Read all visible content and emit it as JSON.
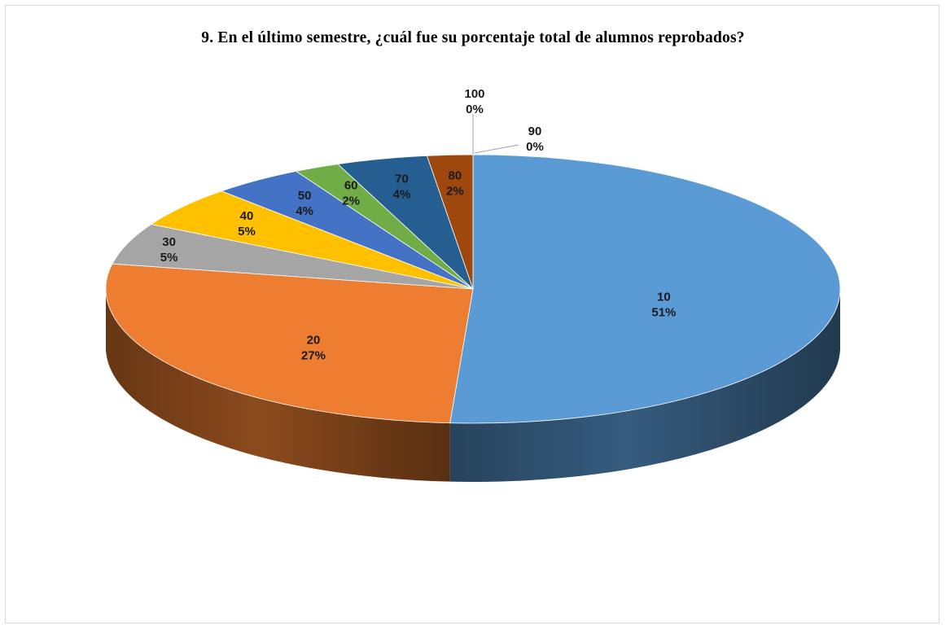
{
  "chart_data": {
    "type": "pie",
    "title": "9. En el último semestre, ¿cuál fue su porcentaje total de alumnos reprobados?",
    "categories": [
      "10",
      "20",
      "30",
      "40",
      "50",
      "60",
      "70",
      "80",
      "90",
      "100"
    ],
    "values": [
      51,
      27,
      5,
      5,
      4,
      2,
      4,
      2,
      0,
      0
    ],
    "value_labels": [
      "51%",
      "27%",
      "5%",
      "5%",
      "4%",
      "2%",
      "4%",
      "2%",
      "0%",
      "0%"
    ],
    "colors": [
      "#5B9BD5",
      "#ED7D31",
      "#A5A5A5",
      "#FFC000",
      "#4472C4",
      "#70AD47",
      "#255E91",
      "#9E480E",
      "#636363",
      "#997300"
    ],
    "style": "3d",
    "legend": "none"
  }
}
